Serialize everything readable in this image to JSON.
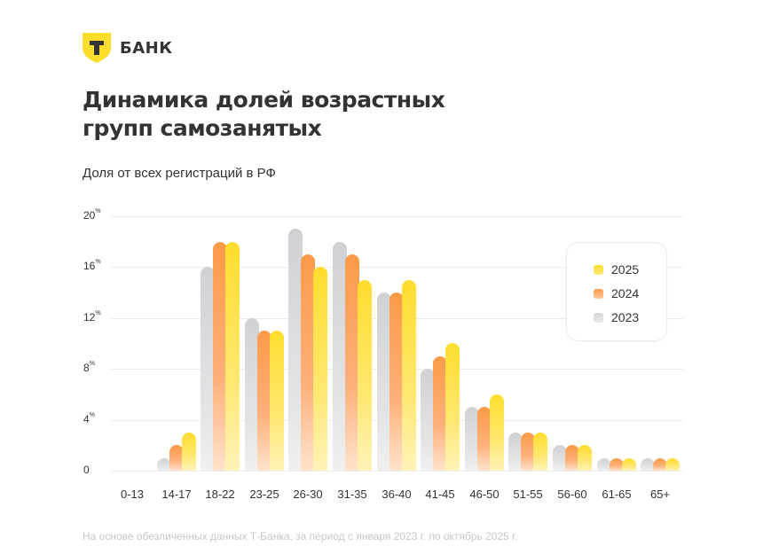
{
  "brand": {
    "logo_letter": "Т",
    "name": "БАНК",
    "color": "#ffdd2d"
  },
  "header": {
    "title_line1": "Динамика долей возрастных",
    "title_line2": "групп самозанятых",
    "subtitle": "Доля от всех регистраций в РФ"
  },
  "footer": {
    "note": "На основе обезличенных данных Т-Банка, за период с января 2023 г. по октябрь 2025 г."
  },
  "y_axis": {
    "ticks": [
      {
        "value": 20,
        "label": "20",
        "suffix": "%"
      },
      {
        "value": 16,
        "label": "16",
        "suffix": "%"
      },
      {
        "value": 12,
        "label": "12",
        "suffix": "%"
      },
      {
        "value": 8,
        "label": "8",
        "suffix": "%"
      },
      {
        "value": 4,
        "label": "4",
        "suffix": "%"
      },
      {
        "value": 0,
        "label": "0",
        "suffix": ""
      }
    ]
  },
  "legend": {
    "items": [
      {
        "label": "2025",
        "color": "#ffdd2d"
      },
      {
        "label": "2024",
        "color": "#fb9a48"
      },
      {
        "label": "2023",
        "color": "#d4d6d9"
      }
    ]
  },
  "chart_data": {
    "type": "bar",
    "title": "Динамика долей возрастных групп самозанятых",
    "subtitle": "Доля от всех регистраций в РФ",
    "xlabel": "",
    "ylabel": "Доля от всех регистраций в РФ, %",
    "ylim": [
      0,
      20
    ],
    "yticks": [
      0,
      4,
      8,
      12,
      16,
      20
    ],
    "grid": true,
    "legend_position": "right-inside",
    "categories": [
      "0-13",
      "14-17",
      "18-22",
      "23-25",
      "26-30",
      "31-35",
      "36-40",
      "41-45",
      "46-50",
      "51-55",
      "56-60",
      "61-65",
      "65+"
    ],
    "series": [
      {
        "name": "2023",
        "color": "#d4d6d9",
        "values": [
          0,
          1,
          16,
          12,
          19,
          18,
          14,
          8,
          5,
          3,
          2,
          1,
          1
        ]
      },
      {
        "name": "2024",
        "color": "#fb9a48",
        "values": [
          0,
          2,
          18,
          11,
          17,
          17,
          14,
          9,
          5,
          3,
          2,
          1,
          1
        ]
      },
      {
        "name": "2025",
        "color": "#ffdd2d",
        "values": [
          0,
          3,
          18,
          11,
          16,
          15,
          15,
          10,
          6,
          3,
          2,
          1,
          1
        ]
      }
    ],
    "source_note": "На основе обезличенных данных Т-Банка, за период с января 2023 г. по октябрь 2025 г."
  }
}
